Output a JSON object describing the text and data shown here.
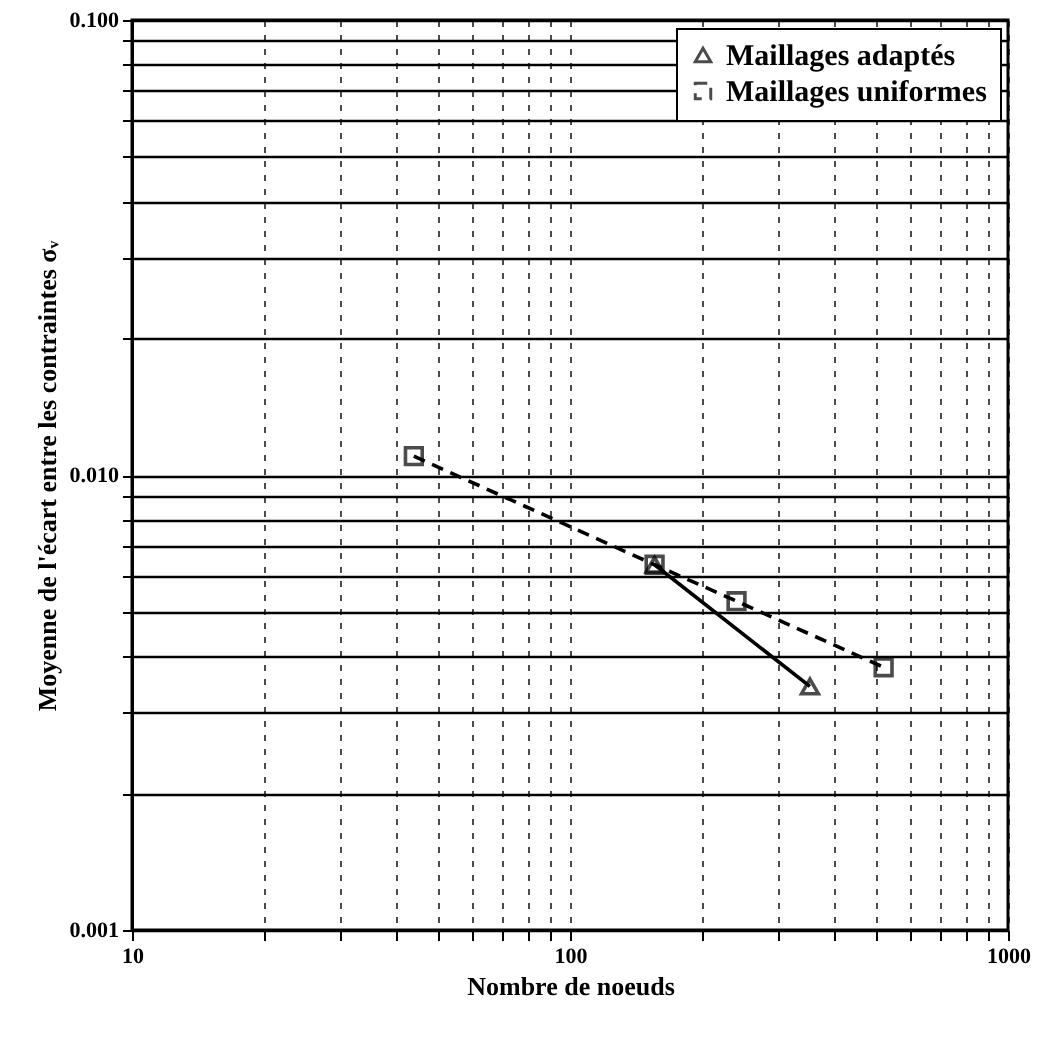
{
  "chart_data": {
    "type": "line",
    "xlabel": "Nombre de noeuds",
    "ylabel": "Moyenne de l'écart entre les contraintes σᵥ",
    "log": "xy",
    "grid": true,
    "legend": "top right",
    "xlim": [
      10,
      1000
    ],
    "ylim": [
      0.001,
      0.1
    ],
    "xticks": [
      10,
      {
        "value": 20,
        "label": null
      },
      {
        "value": 30,
        "label": null
      },
      {
        "value": 40,
        "label": null
      },
      {
        "value": 50,
        "label": null
      },
      {
        "value": 60,
        "label": null
      },
      {
        "value": 70,
        "label": null
      },
      {
        "value": 80,
        "label": null
      },
      {
        "value": 90,
        "label": null
      },
      100,
      {
        "value": 200,
        "label": null
      },
      {
        "value": 300,
        "label": null
      },
      {
        "value": 400,
        "label": null
      },
      {
        "value": 500,
        "label": null
      },
      {
        "value": 600,
        "label": null
      },
      {
        "value": 700,
        "label": null
      },
      {
        "value": 800,
        "label": null
      },
      {
        "value": 900,
        "label": null
      },
      1000
    ],
    "yticks": [
      {
        "value": 0.001,
        "label": "0.001"
      },
      {
        "value": 0.002,
        "label": null
      },
      {
        "value": 0.003,
        "label": null
      },
      {
        "value": 0.004,
        "label": null
      },
      {
        "value": 0.005,
        "label": null
      },
      {
        "value": 0.006,
        "label": null
      },
      {
        "value": 0.007,
        "label": null
      },
      {
        "value": 0.008,
        "label": null
      },
      {
        "value": 0.009,
        "label": null
      },
      {
        "value": 0.01,
        "label": "0.010"
      },
      {
        "value": 0.02,
        "label": null
      },
      {
        "value": 0.03,
        "label": null
      },
      {
        "value": 0.04,
        "label": null
      },
      {
        "value": 0.05,
        "label": null
      },
      {
        "value": 0.06,
        "label": null
      },
      {
        "value": 0.07,
        "label": null
      },
      {
        "value": 0.08,
        "label": null
      },
      {
        "value": 0.09,
        "label": null
      },
      {
        "value": 0.1,
        "label": "0.100"
      }
    ],
    "series": [
      {
        "name": "Maillages adaptés",
        "color": "#000000",
        "marker": "triangle",
        "line_style": "solid",
        "x": [
          156,
          353
        ],
        "values": [
          0.00635,
          0.00343
        ]
      },
      {
        "name": "Maillages uniformes",
        "color": "#000000",
        "marker": "square",
        "line_style": "dashed",
        "x": [
          44,
          156,
          240,
          520
        ],
        "values": [
          0.011,
          0.00635,
          0.00528,
          0.00378
        ]
      }
    ]
  }
}
